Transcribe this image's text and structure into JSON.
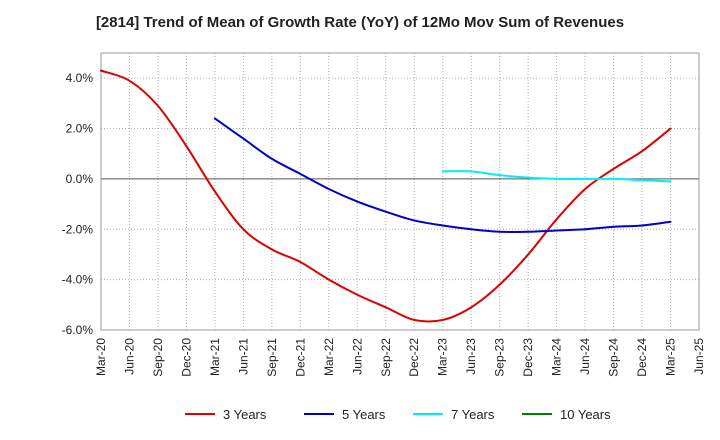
{
  "chart_data": {
    "type": "line",
    "title": "[2814]  Trend of Mean of Growth Rate (YoY) of 12Mo Mov Sum of Revenues",
    "xlabel": "",
    "ylabel": "",
    "ylim": [
      -6.0,
      5.0
    ],
    "y_ticks": [
      4.0,
      2.0,
      0.0,
      -2.0,
      -4.0,
      -6.0
    ],
    "y_tick_labels": [
      "4.0%",
      "2.0%",
      "0.0%",
      "-2.0%",
      "-4.0%",
      "-6.0%"
    ],
    "x_tick_labels": [
      "Mar-20",
      "Jun-20",
      "Sep-20",
      "Dec-20",
      "Mar-21",
      "Jun-21",
      "Sep-21",
      "Dec-21",
      "Mar-22",
      "Jun-22",
      "Sep-22",
      "Dec-22",
      "Mar-23",
      "Jun-23",
      "Sep-23",
      "Dec-23",
      "Mar-24",
      "Jun-24",
      "Sep-24",
      "Dec-24",
      "Mar-25",
      "Jun-25"
    ],
    "grid": true,
    "legend_position": "bottom",
    "series": [
      {
        "name": "3 Years",
        "color": "#dd0000",
        "points": [
          [
            0,
            4.3
          ],
          [
            1,
            3.9
          ],
          [
            2,
            2.9
          ],
          [
            3,
            1.3
          ],
          [
            4,
            -0.5
          ],
          [
            5,
            -2.0
          ],
          [
            6,
            -2.8
          ],
          [
            7,
            -3.3
          ],
          [
            8,
            -4.0
          ],
          [
            9,
            -4.6
          ],
          [
            10,
            -5.1
          ],
          [
            11,
            -5.6
          ],
          [
            12,
            -5.6
          ],
          [
            13,
            -5.1
          ],
          [
            14,
            -4.2
          ],
          [
            15,
            -3.0
          ],
          [
            16,
            -1.6
          ],
          [
            17,
            -0.4
          ],
          [
            18,
            0.4
          ],
          [
            19,
            1.1
          ],
          [
            20,
            2.0
          ]
        ]
      },
      {
        "name": "5 Years",
        "color": "#0000cc",
        "points": [
          [
            4,
            2.4
          ],
          [
            5,
            1.6
          ],
          [
            6,
            0.8
          ],
          [
            7,
            0.2
          ],
          [
            8,
            -0.4
          ],
          [
            9,
            -0.9
          ],
          [
            10,
            -1.3
          ],
          [
            11,
            -1.65
          ],
          [
            12,
            -1.85
          ],
          [
            13,
            -2.0
          ],
          [
            14,
            -2.1
          ],
          [
            15,
            -2.1
          ],
          [
            16,
            -2.05
          ],
          [
            17,
            -2.0
          ],
          [
            18,
            -1.9
          ],
          [
            19,
            -1.85
          ],
          [
            20,
            -1.7
          ]
        ]
      },
      {
        "name": "7 Years",
        "color": "#00eeee",
        "points": [
          [
            12,
            0.3
          ],
          [
            13,
            0.3
          ],
          [
            14,
            0.15
          ],
          [
            15,
            0.05
          ],
          [
            16,
            0.0
          ],
          [
            17,
            0.0
          ],
          [
            18,
            0.0
          ],
          [
            19,
            -0.05
          ],
          [
            20,
            -0.1
          ]
        ]
      },
      {
        "name": "10 Years",
        "color": "#008000",
        "points": []
      }
    ]
  }
}
